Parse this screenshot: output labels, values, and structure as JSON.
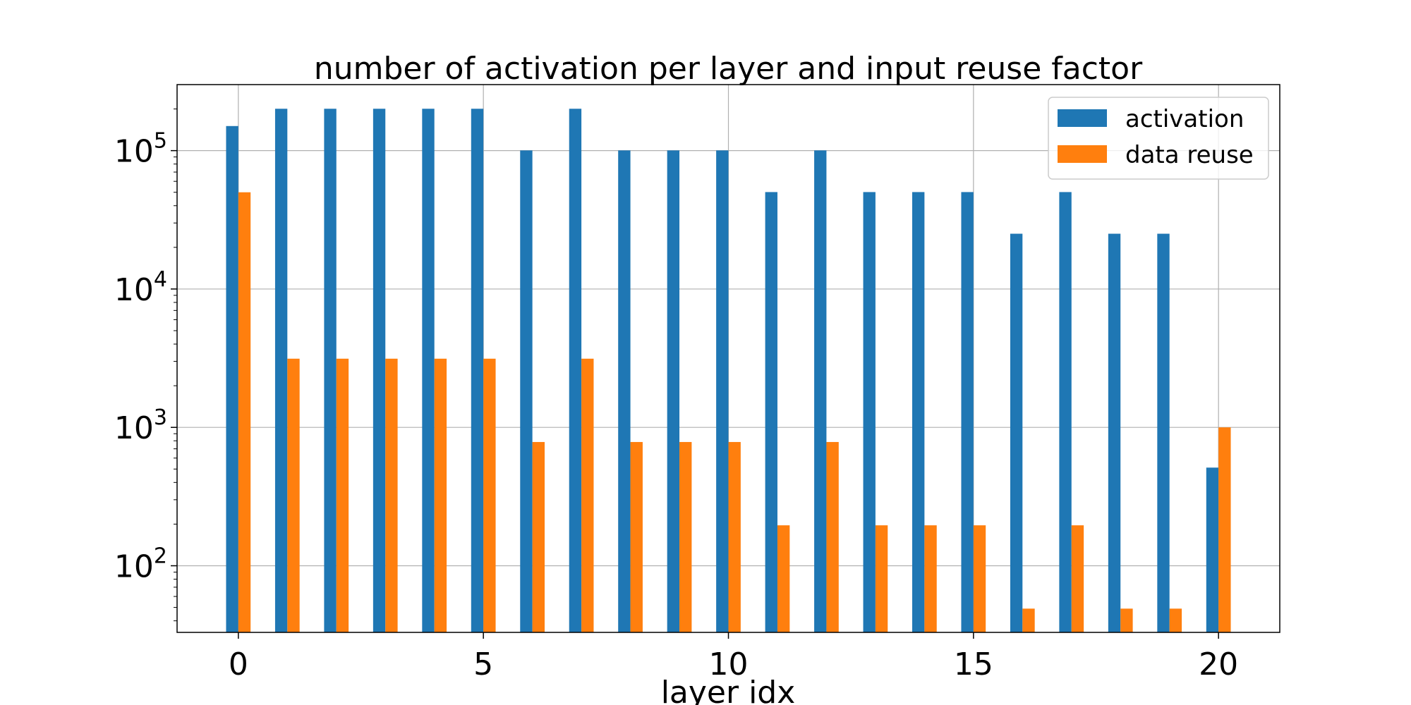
{
  "chart_data": {
    "type": "bar",
    "title": "number of activation per layer and input reuse factor",
    "xlabel": "layer idx",
    "ylabel": "",
    "yscale": "log",
    "ylim": [
      33,
      300000
    ],
    "xlim": [
      -1.25,
      21.25
    ],
    "grid": true,
    "legend_position": "top-right",
    "x": [
      0,
      1,
      2,
      3,
      4,
      5,
      6,
      7,
      8,
      9,
      10,
      11,
      12,
      13,
      14,
      15,
      16,
      17,
      18,
      19,
      20
    ],
    "x_ticks": [
      {
        "value": 0,
        "label": "0"
      },
      {
        "value": 5,
        "label": "5"
      },
      {
        "value": 10,
        "label": "10"
      },
      {
        "value": 15,
        "label": "15"
      },
      {
        "value": 20,
        "label": "20"
      }
    ],
    "y_ticks": [
      {
        "value": 100,
        "base": "10",
        "exp": "2"
      },
      {
        "value": 1000,
        "base": "10",
        "exp": "3"
      },
      {
        "value": 10000,
        "base": "10",
        "exp": "4"
      },
      {
        "value": 100000,
        "base": "10",
        "exp": "5"
      }
    ],
    "series": [
      {
        "name": "activation",
        "color": "#1f77b4",
        "values": [
          150528,
          200704,
          200704,
          200704,
          200704,
          200704,
          100352,
          200704,
          100352,
          100352,
          100352,
          50176,
          100352,
          50176,
          50176,
          50176,
          25088,
          50176,
          25088,
          25088,
          512
        ]
      },
      {
        "name": "data reuse",
        "color": "#ff7f0e",
        "values": [
          50000,
          3136,
          3136,
          3136,
          3136,
          3136,
          784,
          3136,
          784,
          784,
          784,
          196,
          784,
          196,
          196,
          196,
          49,
          196,
          49,
          49,
          1000
        ]
      }
    ]
  }
}
